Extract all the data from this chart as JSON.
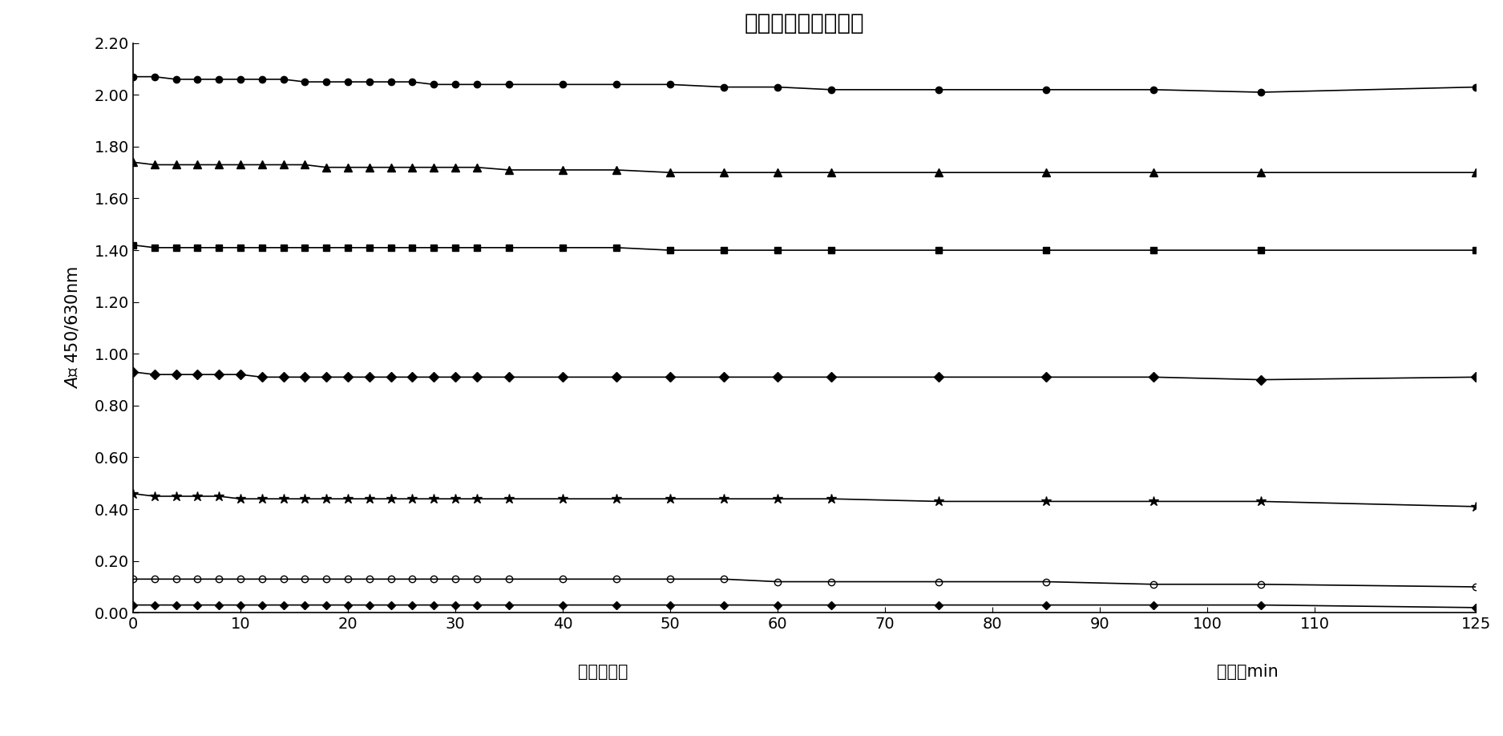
{
  "title": "终止后显色能力评价",
  "xlabel": "终止后时间",
  "xlabel2": "单位：min",
  "ylabel_part1": "A",
  "ylabel_part2": "值 450/630nm",
  "xlim": [
    0,
    125
  ],
  "ylim": [
    0.0,
    2.2
  ],
  "yticks": [
    0.0,
    0.2,
    0.4,
    0.6,
    0.8,
    1.0,
    1.2,
    1.4,
    1.6,
    1.8,
    2.0,
    2.2
  ],
  "xticks": [
    0,
    10,
    20,
    30,
    40,
    50,
    60,
    70,
    80,
    90,
    100,
    110,
    125
  ],
  "x_data": [
    0,
    2,
    4,
    6,
    8,
    10,
    12,
    14,
    16,
    18,
    20,
    22,
    24,
    26,
    28,
    30,
    32,
    35,
    40,
    45,
    50,
    55,
    60,
    65,
    75,
    85,
    95,
    105,
    125
  ],
  "series": [
    {
      "marker": "o",
      "markersize": 6,
      "fillstyle": "full",
      "y": [
        2.07,
        2.07,
        2.06,
        2.06,
        2.06,
        2.06,
        2.06,
        2.06,
        2.05,
        2.05,
        2.05,
        2.05,
        2.05,
        2.05,
        2.04,
        2.04,
        2.04,
        2.04,
        2.04,
        2.04,
        2.04,
        2.03,
        2.03,
        2.02,
        2.02,
        2.02,
        2.02,
        2.01,
        2.03
      ]
    },
    {
      "marker": "^",
      "markersize": 7,
      "fillstyle": "full",
      "y": [
        1.74,
        1.73,
        1.73,
        1.73,
        1.73,
        1.73,
        1.73,
        1.73,
        1.73,
        1.72,
        1.72,
        1.72,
        1.72,
        1.72,
        1.72,
        1.72,
        1.72,
        1.71,
        1.71,
        1.71,
        1.7,
        1.7,
        1.7,
        1.7,
        1.7,
        1.7,
        1.7,
        1.7,
        1.7
      ]
    },
    {
      "marker": "s",
      "markersize": 6,
      "fillstyle": "full",
      "y": [
        1.42,
        1.41,
        1.41,
        1.41,
        1.41,
        1.41,
        1.41,
        1.41,
        1.41,
        1.41,
        1.41,
        1.41,
        1.41,
        1.41,
        1.41,
        1.41,
        1.41,
        1.41,
        1.41,
        1.41,
        1.4,
        1.4,
        1.4,
        1.4,
        1.4,
        1.4,
        1.4,
        1.4,
        1.4
      ]
    },
    {
      "marker": "D",
      "markersize": 6,
      "fillstyle": "full",
      "y": [
        0.93,
        0.92,
        0.92,
        0.92,
        0.92,
        0.92,
        0.91,
        0.91,
        0.91,
        0.91,
        0.91,
        0.91,
        0.91,
        0.91,
        0.91,
        0.91,
        0.91,
        0.91,
        0.91,
        0.91,
        0.91,
        0.91,
        0.91,
        0.91,
        0.91,
        0.91,
        0.91,
        0.9,
        0.91
      ]
    },
    {
      "marker": "*",
      "markersize": 9,
      "fillstyle": "full",
      "y": [
        0.46,
        0.45,
        0.45,
        0.45,
        0.45,
        0.44,
        0.44,
        0.44,
        0.44,
        0.44,
        0.44,
        0.44,
        0.44,
        0.44,
        0.44,
        0.44,
        0.44,
        0.44,
        0.44,
        0.44,
        0.44,
        0.44,
        0.44,
        0.44,
        0.43,
        0.43,
        0.43,
        0.43,
        0.41
      ]
    },
    {
      "marker": "o",
      "markersize": 6,
      "fillstyle": "none",
      "y": [
        0.13,
        0.13,
        0.13,
        0.13,
        0.13,
        0.13,
        0.13,
        0.13,
        0.13,
        0.13,
        0.13,
        0.13,
        0.13,
        0.13,
        0.13,
        0.13,
        0.13,
        0.13,
        0.13,
        0.13,
        0.13,
        0.13,
        0.12,
        0.12,
        0.12,
        0.12,
        0.11,
        0.11,
        0.1
      ]
    },
    {
      "marker": "D",
      "markersize": 5,
      "fillstyle": "full",
      "y": [
        0.03,
        0.03,
        0.03,
        0.03,
        0.03,
        0.03,
        0.03,
        0.03,
        0.03,
        0.03,
        0.03,
        0.03,
        0.03,
        0.03,
        0.03,
        0.03,
        0.03,
        0.03,
        0.03,
        0.03,
        0.03,
        0.03,
        0.03,
        0.03,
        0.03,
        0.03,
        0.03,
        0.03,
        0.02
      ]
    }
  ],
  "line_color": "#000000",
  "background_color": "#ffffff",
  "title_fontsize": 20,
  "axis_label_fontsize": 15,
  "tick_fontsize": 14
}
